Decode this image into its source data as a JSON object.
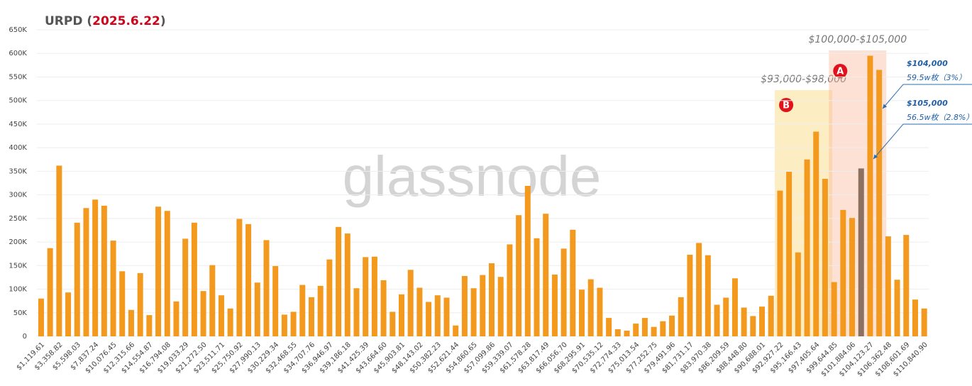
{
  "chart_data": {
    "type": "bar",
    "title_parts": [
      "URPD (",
      "2025.6.22",
      ")"
    ],
    "title_colors": [
      "#555555",
      "#d0021b",
      "#555555"
    ],
    "watermark": "glassnode",
    "categories": [
      "$1,119.61",
      null,
      "$3,358.82",
      null,
      "$5,598.03",
      null,
      "$7,837.24",
      null,
      "$10,076.45",
      null,
      "$12,315.66",
      null,
      "$14,554.87",
      null,
      "$16,794.08",
      null,
      "$19,033.29",
      null,
      "$21,272.50",
      null,
      "$23,511.71",
      null,
      "$25,750.92",
      null,
      "$27,990.13",
      null,
      "$30,229.34",
      null,
      "$32,468.55",
      null,
      "$34,707.76",
      null,
      "$36,946.97",
      null,
      "$39,186.18",
      null,
      "$41,425.39",
      null,
      "$43,664.60",
      null,
      "$45,903.81",
      null,
      "$48,143.02",
      null,
      "$50,382.23",
      null,
      "$52,621.44",
      null,
      "$54,860.65",
      null,
      "$57,099.86",
      null,
      "$59,339.07",
      null,
      "$61,578.28",
      null,
      "$63,817.49",
      null,
      "$66,056.70",
      null,
      "$68,295.91",
      null,
      "$70,535.12",
      null,
      "$72,774.33",
      null,
      "$75,013.54",
      null,
      "$77,252.75",
      null,
      "$79,491.96",
      null,
      "$81,731.17",
      null,
      "$83,970.38",
      null,
      "$86,209.59",
      null,
      "$88,448.80",
      null,
      "$90,688.01",
      null,
      "$92,927.22",
      null,
      "$95,166.43",
      null,
      "$97,405.64",
      null,
      "$99,644.85",
      null,
      "$101,884.06",
      null,
      "$104,123.27",
      null,
      "$106,362.48",
      null,
      "$108,601.69",
      null,
      "$110,840.90"
    ],
    "values": [
      80000,
      187000,
      362000,
      93000,
      241000,
      272000,
      290000,
      277000,
      203000,
      138000,
      56000,
      134000,
      45000,
      275000,
      266000,
      74000,
      207000,
      241000,
      96000,
      151000,
      87000,
      59000,
      249000,
      238000,
      114000,
      204000,
      149000,
      46000,
      52000,
      109000,
      83000,
      107000,
      163000,
      232000,
      218000,
      102000,
      168000,
      169000,
      119000,
      52000,
      89000,
      141000,
      103000,
      73000,
      87000,
      82000,
      23000,
      128000,
      102000,
      130000,
      155000,
      126000,
      195000,
      257000,
      319000,
      208000,
      260000,
      131000,
      186000,
      226000,
      99000,
      121000,
      103000,
      39000,
      15000,
      12000,
      27000,
      39000,
      20000,
      32000,
      44000,
      83000,
      173000,
      198000,
      172000,
      67000,
      82000,
      123000,
      61000,
      43000,
      63000,
      86000,
      309000,
      349000,
      178000,
      375000,
      434000,
      334000,
      115000,
      268000,
      251000,
      356000,
      595000,
      565000,
      212000,
      120000,
      215000,
      78000,
      59000
    ],
    "colors": [
      "#f39a1e",
      "#f39a1e",
      "#f39a1e",
      "#f39a1e",
      "#f39a1e",
      "#f39a1e",
      "#f39a1e",
      "#f39a1e",
      "#f39a1e",
      "#f39a1e",
      "#f39a1e",
      "#f39a1e",
      "#f39a1e",
      "#f39a1e",
      "#f39a1e",
      "#f39a1e",
      "#f39a1e",
      "#f39a1e",
      "#f39a1e",
      "#f39a1e",
      "#f39a1e",
      "#f39a1e",
      "#f39a1e",
      "#f39a1e",
      "#f39a1e",
      "#f39a1e",
      "#f39a1e",
      "#f39a1e",
      "#f39a1e",
      "#f39a1e",
      "#f39a1e",
      "#f39a1e",
      "#f39a1e",
      "#f39a1e",
      "#f39a1e",
      "#f39a1e",
      "#f39a1e",
      "#f39a1e",
      "#f39a1e",
      "#f39a1e",
      "#f39a1e",
      "#f39a1e",
      "#f39a1e",
      "#f39a1e",
      "#f39a1e",
      "#f39a1e",
      "#f39a1e",
      "#f39a1e",
      "#f39a1e",
      "#f39a1e",
      "#f39a1e",
      "#f39a1e",
      "#f39a1e",
      "#f39a1e",
      "#f39a1e",
      "#f39a1e",
      "#f39a1e",
      "#f39a1e",
      "#f39a1e",
      "#f39a1e",
      "#f39a1e",
      "#f39a1e",
      "#f39a1e",
      "#f39a1e",
      "#f39a1e",
      "#f39a1e",
      "#f39a1e",
      "#f39a1e",
      "#f39a1e",
      "#f39a1e",
      "#f39a1e",
      "#f39a1e",
      "#f39a1e",
      "#f39a1e",
      "#f39a1e",
      "#f39a1e",
      "#f39a1e",
      "#f39a1e",
      "#f39a1e",
      "#f39a1e",
      "#f39a1e",
      "#f39a1e",
      "#f39a1e",
      "#f39a1e",
      "#f39a1e",
      "#f39a1e",
      "#f39a1e",
      "#f39a1e",
      "#f39a1e",
      "#f39a1e",
      "#f39a1e",
      "#8c7060",
      "#f39a1e",
      "#f39a1e",
      "#f39a1e",
      "#f39a1e",
      "#f39a1e",
      "#f39a1e",
      "#f39a1e"
    ],
    "ylim": [
      0,
      650000
    ],
    "yticks": [
      0,
      {
        "value": 50000,
        "label": "50K"
      },
      {
        "value": 100000,
        "label": "100K"
      },
      {
        "value": 150000,
        "label": "150K"
      },
      {
        "value": 200000,
        "label": "200K"
      },
      {
        "value": 250000,
        "label": "250K"
      },
      {
        "value": 300000,
        "label": "300K"
      },
      {
        "value": 350000,
        "label": "350K"
      },
      {
        "value": 400000,
        "label": "400K"
      },
      {
        "value": 450000,
        "label": "450K"
      },
      {
        "value": 500000,
        "label": "500K"
      },
      {
        "value": 550000,
        "label": "550K"
      },
      {
        "value": 600000,
        "label": "600K"
      },
      {
        "value": 650000,
        "label": "650K"
      }
    ],
    "grid": true,
    "regions": [
      {
        "label": "$93,000-$98,000",
        "marker": "B",
        "range": [
          93000,
          98000
        ],
        "color": "rgba(250,215,120,0.45)"
      },
      {
        "label": "$100,000-$105,000",
        "marker": "A",
        "range": [
          100000,
          105000
        ],
        "color": "rgba(250,180,150,0.4)"
      }
    ],
    "callouts": [
      {
        "price": "$104,000",
        "detail": "59.5w枚（3%）"
      },
      {
        "price": "$105,000",
        "detail": "56.5w枚（2.8%）"
      }
    ]
  }
}
